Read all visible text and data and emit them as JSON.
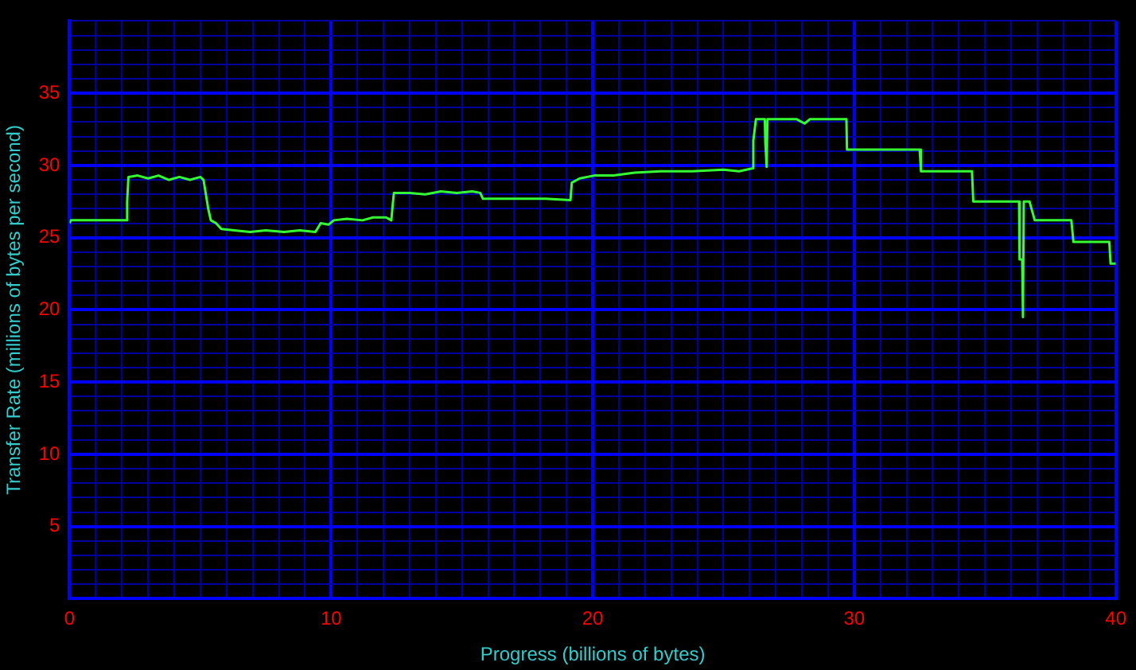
{
  "chart_data": {
    "type": "line",
    "xlabel": "Progress (billions of bytes)",
    "ylabel": "Transfer Rate (millions of bytes per second)",
    "xlim": [
      0,
      40
    ],
    "ylim": [
      0,
      40
    ],
    "xticks": [
      0,
      {
        "value": 1,
        "label": null
      },
      {
        "value": 2,
        "label": null
      },
      {
        "value": 3,
        "label": null
      },
      {
        "value": 4,
        "label": null
      },
      {
        "value": 5,
        "label": null
      },
      {
        "value": 6,
        "label": null
      },
      {
        "value": 7,
        "label": null
      },
      {
        "value": 8,
        "label": null
      },
      {
        "value": 9,
        "label": null
      },
      10,
      {
        "value": 11,
        "label": null
      },
      {
        "value": 12,
        "label": null
      },
      {
        "value": 13,
        "label": null
      },
      {
        "value": 14,
        "label": null
      },
      {
        "value": 15,
        "label": null
      },
      {
        "value": 16,
        "label": null
      },
      {
        "value": 17,
        "label": null
      },
      {
        "value": 18,
        "label": null
      },
      {
        "value": 19,
        "label": null
      },
      20,
      {
        "value": 21,
        "label": null
      },
      {
        "value": 22,
        "label": null
      },
      {
        "value": 23,
        "label": null
      },
      {
        "value": 24,
        "label": null
      },
      {
        "value": 25,
        "label": null
      },
      {
        "value": 26,
        "label": null
      },
      {
        "value": 27,
        "label": null
      },
      {
        "value": 28,
        "label": null
      },
      {
        "value": 29,
        "label": null
      },
      30,
      {
        "value": 31,
        "label": null
      },
      {
        "value": 32,
        "label": null
      },
      {
        "value": 33,
        "label": null
      },
      {
        "value": 34,
        "label": null
      },
      {
        "value": 35,
        "label": null
      },
      {
        "value": 36,
        "label": null
      },
      {
        "value": 37,
        "label": null
      },
      {
        "value": 38,
        "label": null
      },
      {
        "value": 39,
        "label": null
      },
      40
    ],
    "yticks": [
      {
        "value": 0,
        "label": null
      },
      {
        "value": 1,
        "label": null
      },
      {
        "value": 2,
        "label": null
      },
      {
        "value": 3,
        "label": null
      },
      {
        "value": 4,
        "label": null
      },
      5,
      {
        "value": 6,
        "label": null
      },
      {
        "value": 7,
        "label": null
      },
      {
        "value": 8,
        "label": null
      },
      {
        "value": 9,
        "label": null
      },
      10,
      {
        "value": 11,
        "label": null
      },
      {
        "value": 12,
        "label": null
      },
      {
        "value": 13,
        "label": null
      },
      {
        "value": 14,
        "label": null
      },
      15,
      {
        "value": 16,
        "label": null
      },
      {
        "value": 17,
        "label": null
      },
      {
        "value": 18,
        "label": null
      },
      {
        "value": 19,
        "label": null
      },
      20,
      {
        "value": 21,
        "label": null
      },
      {
        "value": 22,
        "label": null
      },
      {
        "value": 23,
        "label": null
      },
      {
        "value": 24,
        "label": null
      },
      25,
      {
        "value": 26,
        "label": null
      },
      {
        "value": 27,
        "label": null
      },
      {
        "value": 28,
        "label": null
      },
      {
        "value": 29,
        "label": null
      },
      30,
      {
        "value": 31,
        "label": null
      },
      {
        "value": 32,
        "label": null
      },
      {
        "value": 33,
        "label": null
      },
      {
        "value": 34,
        "label": null
      },
      35,
      {
        "value": 36,
        "label": null
      },
      {
        "value": 37,
        "label": null
      },
      {
        "value": 38,
        "label": null
      },
      {
        "value": 39,
        "label": null
      },
      {
        "value": 40,
        "label": null
      }
    ],
    "grid": true,
    "legend": false,
    "marker": "none",
    "line_style": "solid",
    "series": [
      {
        "color": "#33ff33",
        "x": [
          0,
          0.05,
          2.15,
          2.2,
          2.25,
          2.6,
          3.0,
          3.4,
          3.8,
          4.2,
          4.6,
          5.0,
          5.12,
          5.3,
          5.4,
          5.6,
          5.8,
          6.3,
          6.9,
          7.5,
          8.2,
          8.8,
          9.4,
          9.5,
          9.6,
          9.9,
          10.1,
          10.6,
          11.2,
          11.6,
          12.1,
          12.3,
          12.35,
          12.4,
          13.0,
          13.6,
          14.2,
          14.8,
          15.4,
          15.7,
          15.8,
          17.0,
          18.2,
          19.15,
          19.2,
          19.5,
          20.06,
          20.8,
          21.6,
          22.6,
          23.8,
          25.0,
          25.6,
          26.12,
          26.14,
          26.24,
          26.58,
          26.6,
          26.65,
          26.68,
          27.8,
          28.1,
          28.3,
          29.7,
          29.72,
          30.8,
          32.5,
          32.55,
          34.5,
          34.55,
          36.3,
          36.32,
          36.42,
          36.45,
          36.48,
          36.7,
          36.9,
          38.3,
          38.38,
          39.75,
          39.8,
          40
        ],
        "values": [
          26.0,
          26.2,
          26.2,
          27.5,
          29.2,
          29.3,
          29.1,
          29.3,
          29.0,
          29.2,
          29.0,
          29.2,
          29.0,
          27.0,
          26.2,
          26.0,
          25.6,
          25.5,
          25.4,
          25.5,
          25.4,
          25.5,
          25.4,
          25.7,
          26.0,
          25.9,
          26.2,
          26.3,
          26.2,
          26.4,
          26.4,
          26.2,
          27.2,
          28.1,
          28.1,
          28.0,
          28.2,
          28.1,
          28.2,
          28.1,
          27.7,
          27.7,
          27.7,
          27.6,
          28.8,
          29.1,
          29.3,
          29.3,
          29.5,
          29.6,
          29.6,
          29.7,
          29.6,
          29.8,
          31.7,
          33.2,
          33.2,
          31.6,
          29.9,
          33.2,
          33.2,
          32.9,
          33.2,
          33.2,
          31.1,
          31.1,
          31.1,
          29.6,
          29.6,
          27.5,
          27.5,
          23.5,
          23.5,
          19.5,
          27.5,
          27.5,
          26.2,
          26.2,
          24.7,
          24.7,
          23.2,
          23.2
        ]
      }
    ]
  }
}
